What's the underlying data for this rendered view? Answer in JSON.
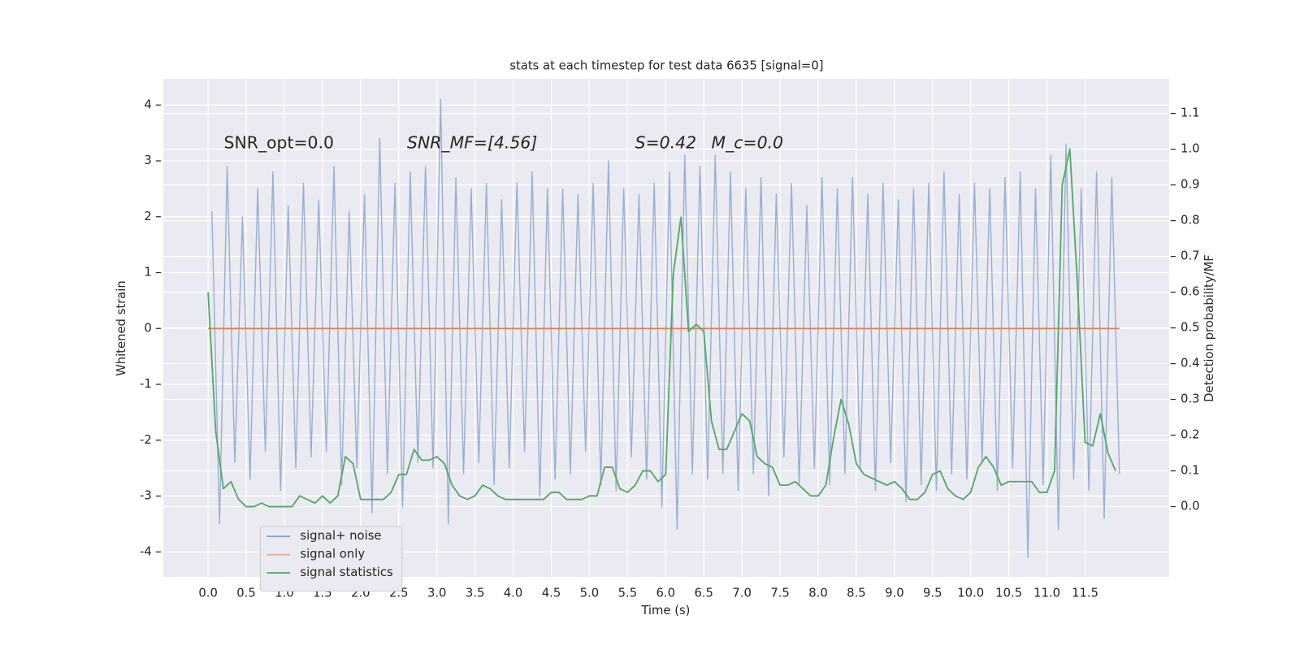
{
  "chart_data": {
    "type": "line",
    "title": "stats at each timestep for test data 6635 [signal=0]",
    "xlabel": "Time (s)",
    "ylabel": "Whitened strain",
    "y2label": "Detection probability/MF",
    "annotations": [
      "SNR_opt=0.0",
      "SNR_MF=[4.56]",
      "S=0.42",
      "M_c=0.0"
    ],
    "xlim": [
      -0.587,
      12.6
    ],
    "ylim": [
      -4.45,
      4.47
    ],
    "y2lim": [
      -0.197,
      1.197
    ],
    "xticks": [
      {
        "value": 0,
        "label": "0.0"
      },
      0.5,
      {
        "value": 1,
        "label": "1.0"
      },
      1.5,
      {
        "value": 2,
        "label": "2.0"
      },
      2.5,
      {
        "value": 3,
        "label": "3.0"
      },
      3.5,
      {
        "value": 4,
        "label": "4.0"
      },
      4.5,
      {
        "value": 5,
        "label": "5.0"
      },
      5.5,
      {
        "value": 6,
        "label": "6.0"
      },
      6.5,
      {
        "value": 7,
        "label": "7.0"
      },
      7.5,
      {
        "value": 8,
        "label": "8.0"
      },
      8.5,
      {
        "value": 9,
        "label": "9.0"
      },
      9.5,
      {
        "value": 10,
        "label": "10.0"
      },
      10.5,
      {
        "value": 11,
        "label": "11.0"
      },
      11.5
    ],
    "yticks": [
      -4,
      -3,
      -2,
      -1,
      0,
      1,
      2,
      3,
      4
    ],
    "y2ticks": [
      {
        "value": 0,
        "label": "0.0"
      },
      0.1,
      0.2,
      0.3,
      0.4,
      0.5,
      0.6,
      0.7,
      0.8,
      0.9,
      {
        "value": 1,
        "label": "1.0"
      },
      1.1
    ],
    "grid": true,
    "legend": "lower left",
    "series": [
      {
        "name": "signal+ noise",
        "color": "#4c72b0",
        "axis": "y",
        "x": [
          0.05,
          0.15,
          0.25,
          0.35,
          0.45,
          0.55,
          0.65,
          0.75,
          0.85,
          0.95,
          1.05,
          1.15,
          1.25,
          1.35,
          1.45,
          1.55,
          1.65,
          1.75,
          1.85,
          1.95,
          2.05,
          2.15,
          2.25,
          2.35,
          2.45,
          2.55,
          2.65,
          2.75,
          2.85,
          2.95,
          3.05,
          3.15,
          3.25,
          3.35,
          3.45,
          3.55,
          3.65,
          3.75,
          3.85,
          3.95,
          4.05,
          4.15,
          4.25,
          4.35,
          4.45,
          4.55,
          4.65,
          4.75,
          4.85,
          4.95,
          5.05,
          5.15,
          5.25,
          5.35,
          5.45,
          5.55,
          5.65,
          5.75,
          5.85,
          5.95,
          6.05,
          6.15,
          6.25,
          6.35,
          6.45,
          6.55,
          6.65,
          6.75,
          6.85,
          6.95,
          7.05,
          7.15,
          7.25,
          7.35,
          7.45,
          7.55,
          7.65,
          7.75,
          7.85,
          7.95,
          8.05,
          8.15,
          8.25,
          8.35,
          8.45,
          8.55,
          8.65,
          8.75,
          8.85,
          8.95,
          9.05,
          9.15,
          9.25,
          9.35,
          9.45,
          9.55,
          9.65,
          9.75,
          9.85,
          9.95,
          10.05,
          10.15,
          10.25,
          10.35,
          10.45,
          10.55,
          10.65,
          10.75,
          10.85,
          10.95,
          11.05,
          11.15,
          11.25,
          11.35,
          11.45,
          11.55,
          11.65,
          11.75,
          11.85,
          11.95
        ],
        "values": [
          2.1,
          -3.5,
          2.9,
          -2.4,
          2.0,
          -2.7,
          2.5,
          -2.2,
          2.8,
          -2.9,
          2.2,
          -2.5,
          2.6,
          -2.3,
          2.3,
          -2.2,
          2.9,
          -2.8,
          2.1,
          -2.5,
          2.4,
          -3.3,
          3.4,
          -2.6,
          2.6,
          -3.2,
          2.8,
          -2.4,
          2.9,
          -2.5,
          4.1,
          -3.5,
          2.7,
          -2.6,
          2.5,
          -2.4,
          2.6,
          -2.8,
          2.3,
          -2.5,
          2.6,
          -2.2,
          2.8,
          -3.0,
          2.5,
          -2.7,
          2.5,
          -2.6,
          2.4,
          -2.2,
          2.6,
          -2.8,
          3.0,
          -2.9,
          2.5,
          -2.3,
          2.4,
          -2.7,
          2.6,
          -3.2,
          2.8,
          -3.6,
          3.1,
          -2.6,
          2.9,
          -2.7,
          3.1,
          -2.6,
          2.8,
          -2.9,
          2.5,
          -2.6,
          2.7,
          -3.0,
          2.4,
          -2.3,
          2.6,
          -2.8,
          2.2,
          -2.5,
          2.7,
          -2.8,
          2.5,
          -2.6,
          2.7,
          -2.5,
          2.4,
          -2.9,
          2.6,
          -2.4,
          2.3,
          -3.1,
          2.5,
          -2.8,
          2.6,
          -2.9,
          2.8,
          -2.6,
          2.4,
          -2.7,
          2.6,
          -2.4,
          2.5,
          -2.9,
          2.7,
          -2.5,
          2.8,
          -4.1,
          2.5,
          -2.8,
          3.1,
          -3.6,
          3.3,
          -2.7,
          2.5,
          -2.9,
          2.8,
          -3.4,
          2.7,
          -2.6
        ]
      },
      {
        "name": "signal only",
        "color": "#dd8452",
        "axis": "y",
        "x": [
          0,
          11.95
        ],
        "values": [
          0,
          0
        ]
      },
      {
        "name": "signal statistics",
        "color": "#55a868",
        "axis": "y2",
        "x": [
          0.0,
          0.1,
          0.2,
          0.3,
          0.4,
          0.5,
          0.6,
          0.7,
          0.8,
          0.9,
          1.0,
          1.1,
          1.2,
          1.3,
          1.4,
          1.5,
          1.6,
          1.7,
          1.8,
          1.9,
          2.0,
          2.1,
          2.2,
          2.3,
          2.4,
          2.5,
          2.6,
          2.7,
          2.8,
          2.9,
          3.0,
          3.1,
          3.2,
          3.3,
          3.4,
          3.5,
          3.6,
          3.7,
          3.8,
          3.9,
          4.0,
          4.1,
          4.2,
          4.3,
          4.4,
          4.5,
          4.6,
          4.7,
          4.8,
          4.9,
          5.0,
          5.1,
          5.2,
          5.3,
          5.4,
          5.5,
          5.6,
          5.7,
          5.8,
          5.9,
          6.0,
          6.1,
          6.2,
          6.3,
          6.4,
          6.5,
          6.6,
          6.7,
          6.8,
          6.9,
          7.0,
          7.1,
          7.2,
          7.3,
          7.4,
          7.5,
          7.6,
          7.7,
          7.8,
          7.9,
          8.0,
          8.1,
          8.2,
          8.3,
          8.4,
          8.5,
          8.6,
          8.7,
          8.8,
          8.9,
          9.0,
          9.1,
          9.2,
          9.3,
          9.4,
          9.5,
          9.6,
          9.7,
          9.8,
          9.9,
          10.0,
          10.1,
          10.2,
          10.3,
          10.4,
          10.5,
          10.6,
          10.7,
          10.8,
          10.9,
          11.0,
          11.1,
          11.2,
          11.3,
          11.4,
          11.5,
          11.6,
          11.7,
          11.8,
          11.9
        ],
        "values": [
          0.6,
          0.21,
          0.05,
          0.07,
          0.02,
          0.0,
          0.0,
          0.01,
          0.0,
          0.0,
          0.0,
          0.0,
          0.03,
          0.02,
          0.01,
          0.03,
          0.01,
          0.03,
          0.14,
          0.12,
          0.02,
          0.02,
          0.02,
          0.02,
          0.04,
          0.09,
          0.09,
          0.16,
          0.13,
          0.13,
          0.14,
          0.12,
          0.06,
          0.03,
          0.02,
          0.03,
          0.06,
          0.05,
          0.03,
          0.02,
          0.02,
          0.02,
          0.02,
          0.02,
          0.02,
          0.04,
          0.04,
          0.02,
          0.02,
          0.02,
          0.03,
          0.03,
          0.11,
          0.11,
          0.05,
          0.04,
          0.06,
          0.1,
          0.1,
          0.07,
          0.09,
          0.65,
          0.81,
          0.49,
          0.51,
          0.49,
          0.24,
          0.16,
          0.16,
          0.21,
          0.26,
          0.24,
          0.14,
          0.12,
          0.11,
          0.06,
          0.06,
          0.07,
          0.05,
          0.03,
          0.03,
          0.06,
          0.19,
          0.3,
          0.23,
          0.12,
          0.09,
          0.08,
          0.07,
          0.06,
          0.07,
          0.05,
          0.02,
          0.02,
          0.04,
          0.09,
          0.1,
          0.05,
          0.03,
          0.02,
          0.04,
          0.11,
          0.14,
          0.11,
          0.06,
          0.07,
          0.07,
          0.07,
          0.07,
          0.04,
          0.04,
          0.1,
          0.9,
          1.0,
          0.62,
          0.18,
          0.17,
          0.26,
          0.15,
          0.1
        ]
      }
    ]
  }
}
